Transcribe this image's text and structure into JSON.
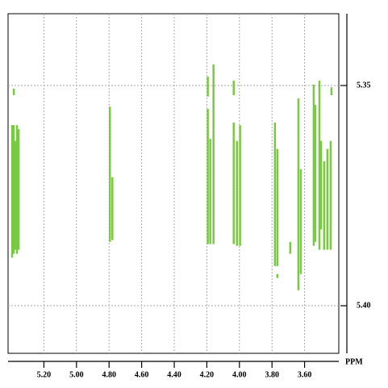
{
  "chart_data": {
    "type": "spectrum2d",
    "xlabel": "PPM",
    "color": "#7ac943",
    "xlim": [
      5.42,
      3.39
    ],
    "ylim": [
      5.3337,
      5.4108
    ],
    "xticks": [
      {
        "value": 5.2,
        "label": "5.20"
      },
      {
        "value": 5.0,
        "label": "5.00"
      },
      {
        "value": 4.8,
        "label": "4.80"
      },
      {
        "value": 4.6,
        "label": "4.60"
      },
      {
        "value": 4.4,
        "label": "4.40"
      },
      {
        "value": 4.2,
        "label": "4.20"
      },
      {
        "value": 4.0,
        "label": "4.00"
      },
      {
        "value": 3.8,
        "label": "3.80"
      },
      {
        "value": 3.6,
        "label": "3.60"
      }
    ],
    "yticks": [
      5.35,
      {
        "value": 5.4,
        "label": "5.40"
      }
    ],
    "grid": true,
    "x": [
      5.395,
      5.385,
      5.385,
      5.375,
      5.365,
      5.355,
      4.795,
      4.78,
      4.194,
      4.194,
      4.179,
      4.159,
      4.159,
      4.035,
      4.035,
      4.015,
      3.996,
      3.782,
      3.767,
      3.767,
      3.688,
      3.638,
      3.623,
      3.544,
      3.534,
      3.509,
      3.499,
      3.48,
      3.46,
      3.44,
      3.435
    ],
    "y_start": [
      5.359,
      5.3507,
      5.359,
      5.3626,
      5.359,
      5.3599,
      5.3548,
      5.3708,
      5.348,
      5.3553,
      5.3621,
      5.3452,
      5.3599,
      5.3489,
      5.3584,
      5.3626,
      5.359,
      5.3584,
      5.3644,
      5.3928,
      5.3855,
      5.3529,
      5.369,
      5.3498,
      5.3544,
      5.3489,
      5.3626,
      5.3672,
      5.3644,
      5.3626,
      5.3504
    ],
    "y_end": [
      5.3891,
      5.3522,
      5.3882,
      5.3873,
      5.3882,
      5.3873,
      5.3855,
      5.3851,
      5.3525,
      5.386,
      5.386,
      5.3599,
      5.386,
      5.3522,
      5.386,
      5.3864,
      5.3864,
      5.391,
      5.391,
      5.3937,
      5.3882,
      5.3965,
      5.3928,
      5.3864,
      5.3855,
      5.3873,
      5.3827,
      5.3873,
      5.3873,
      5.3873,
      5.3522
    ]
  }
}
